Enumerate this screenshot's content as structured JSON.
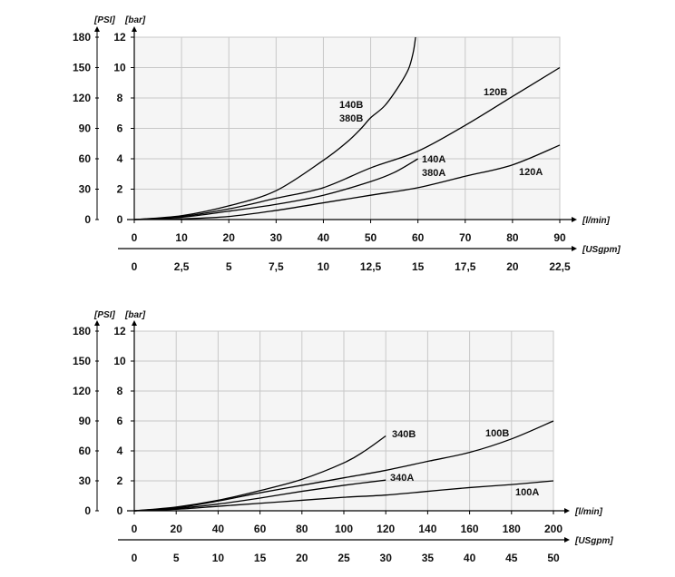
{
  "colors": {
    "plot_bg": "#f5f5f5",
    "grid": "#c8c8c8",
    "axis": "#000000",
    "curve": "#000000"
  },
  "chart_data": [
    {
      "type": "line",
      "x_unit": "[l/min]",
      "x2_unit": "[USgpm]",
      "y_unit": "[bar]",
      "y2_unit": "[PSI]",
      "xlim": [
        0,
        90
      ],
      "ylim": [
        0,
        12
      ],
      "grid": true,
      "x_ticks": [
        0,
        10,
        20,
        30,
        40,
        50,
        60,
        70,
        80,
        90
      ],
      "x2_ticks": [
        "0",
        "2,5",
        "5",
        "7,5",
        "10",
        "12,5",
        "15",
        "17,5",
        "20",
        "22,5"
      ],
      "y_ticks": [
        0,
        2,
        4,
        6,
        8,
        10,
        12
      ],
      "y2_ticks": [
        0,
        30,
        60,
        90,
        120,
        150,
        180
      ],
      "series": [
        {
          "labels": [
            "140B",
            "380B"
          ],
          "points": [
            [
              0,
              0
            ],
            [
              10,
              0.25
            ],
            [
              20,
              0.9
            ],
            [
              30,
              1.9
            ],
            [
              40,
              3.9
            ],
            [
              45,
              5.1
            ],
            [
              48,
              6.0
            ],
            [
              50,
              6.7
            ],
            [
              53,
              7.5
            ],
            [
              56,
              8.8
            ],
            [
              58,
              9.9
            ],
            [
              59,
              11
            ],
            [
              59.5,
              12
            ]
          ]
        },
        {
          "labels": [
            "120B"
          ],
          "points": [
            [
              0,
              0
            ],
            [
              10,
              0.2
            ],
            [
              20,
              0.7
            ],
            [
              30,
              1.4
            ],
            [
              40,
              2.1
            ],
            [
              50,
              3.4
            ],
            [
              60,
              4.5
            ],
            [
              70,
              6.2
            ],
            [
              80,
              8.1
            ],
            [
              90,
              10
            ]
          ]
        },
        {
          "labels": [
            "140A",
            "380A"
          ],
          "points": [
            [
              0,
              0
            ],
            [
              10,
              0.15
            ],
            [
              20,
              0.55
            ],
            [
              30,
              1.0
            ],
            [
              40,
              1.6
            ],
            [
              50,
              2.5
            ],
            [
              55,
              3.1
            ],
            [
              60,
              4.0
            ]
          ]
        },
        {
          "labels": [
            "120A"
          ],
          "points": [
            [
              0,
              0
            ],
            [
              10,
              0.05
            ],
            [
              20,
              0.2
            ],
            [
              30,
              0.6
            ],
            [
              40,
              1.1
            ],
            [
              50,
              1.6
            ],
            [
              60,
              2.1
            ],
            [
              70,
              2.85
            ],
            [
              80,
              3.6
            ],
            [
              90,
              4.9
            ]
          ]
        }
      ]
    },
    {
      "type": "line",
      "x_unit": "[l/min]",
      "x2_unit": "[USgpm]",
      "y_unit": "[bar]",
      "y2_unit": "[PSI]",
      "xlim": [
        0,
        200
      ],
      "ylim": [
        0,
        12
      ],
      "grid": true,
      "x_ticks": [
        0,
        20,
        40,
        60,
        80,
        100,
        120,
        140,
        160,
        180,
        200
      ],
      "x2_ticks": [
        "0",
        "5",
        "10",
        "15",
        "20",
        "25",
        "30",
        "35",
        "40",
        "45",
        "50"
      ],
      "y_ticks": [
        0,
        2,
        4,
        6,
        8,
        10,
        12
      ],
      "y2_ticks": [
        0,
        30,
        60,
        90,
        120,
        150,
        180
      ],
      "series": [
        {
          "labels": [
            "340B"
          ],
          "points": [
            [
              0,
              0
            ],
            [
              20,
              0.25
            ],
            [
              40,
              0.7
            ],
            [
              60,
              1.35
            ],
            [
              80,
              2.1
            ],
            [
              100,
              3.2
            ],
            [
              110,
              4.0
            ],
            [
              120,
              5.0
            ]
          ]
        },
        {
          "labels": [
            "100B"
          ],
          "points": [
            [
              0,
              0
            ],
            [
              20,
              0.2
            ],
            [
              40,
              0.65
            ],
            [
              60,
              1.2
            ],
            [
              80,
              1.7
            ],
            [
              100,
              2.2
            ],
            [
              120,
              2.7
            ],
            [
              140,
              3.3
            ],
            [
              160,
              3.9
            ],
            [
              180,
              4.8
            ],
            [
              200,
              6.0
            ]
          ]
        },
        {
          "labels": [
            "340A"
          ],
          "points": [
            [
              0,
              0
            ],
            [
              20,
              0.15
            ],
            [
              40,
              0.45
            ],
            [
              60,
              0.85
            ],
            [
              80,
              1.3
            ],
            [
              100,
              1.7
            ],
            [
              120,
              2.05
            ]
          ]
        },
        {
          "labels": [
            "100A"
          ],
          "points": [
            [
              0,
              0
            ],
            [
              20,
              0.1
            ],
            [
              40,
              0.3
            ],
            [
              60,
              0.5
            ],
            [
              80,
              0.7
            ],
            [
              100,
              0.9
            ],
            [
              120,
              1.05
            ],
            [
              140,
              1.3
            ],
            [
              160,
              1.55
            ],
            [
              180,
              1.75
            ],
            [
              200,
              2.0
            ]
          ]
        }
      ]
    }
  ]
}
